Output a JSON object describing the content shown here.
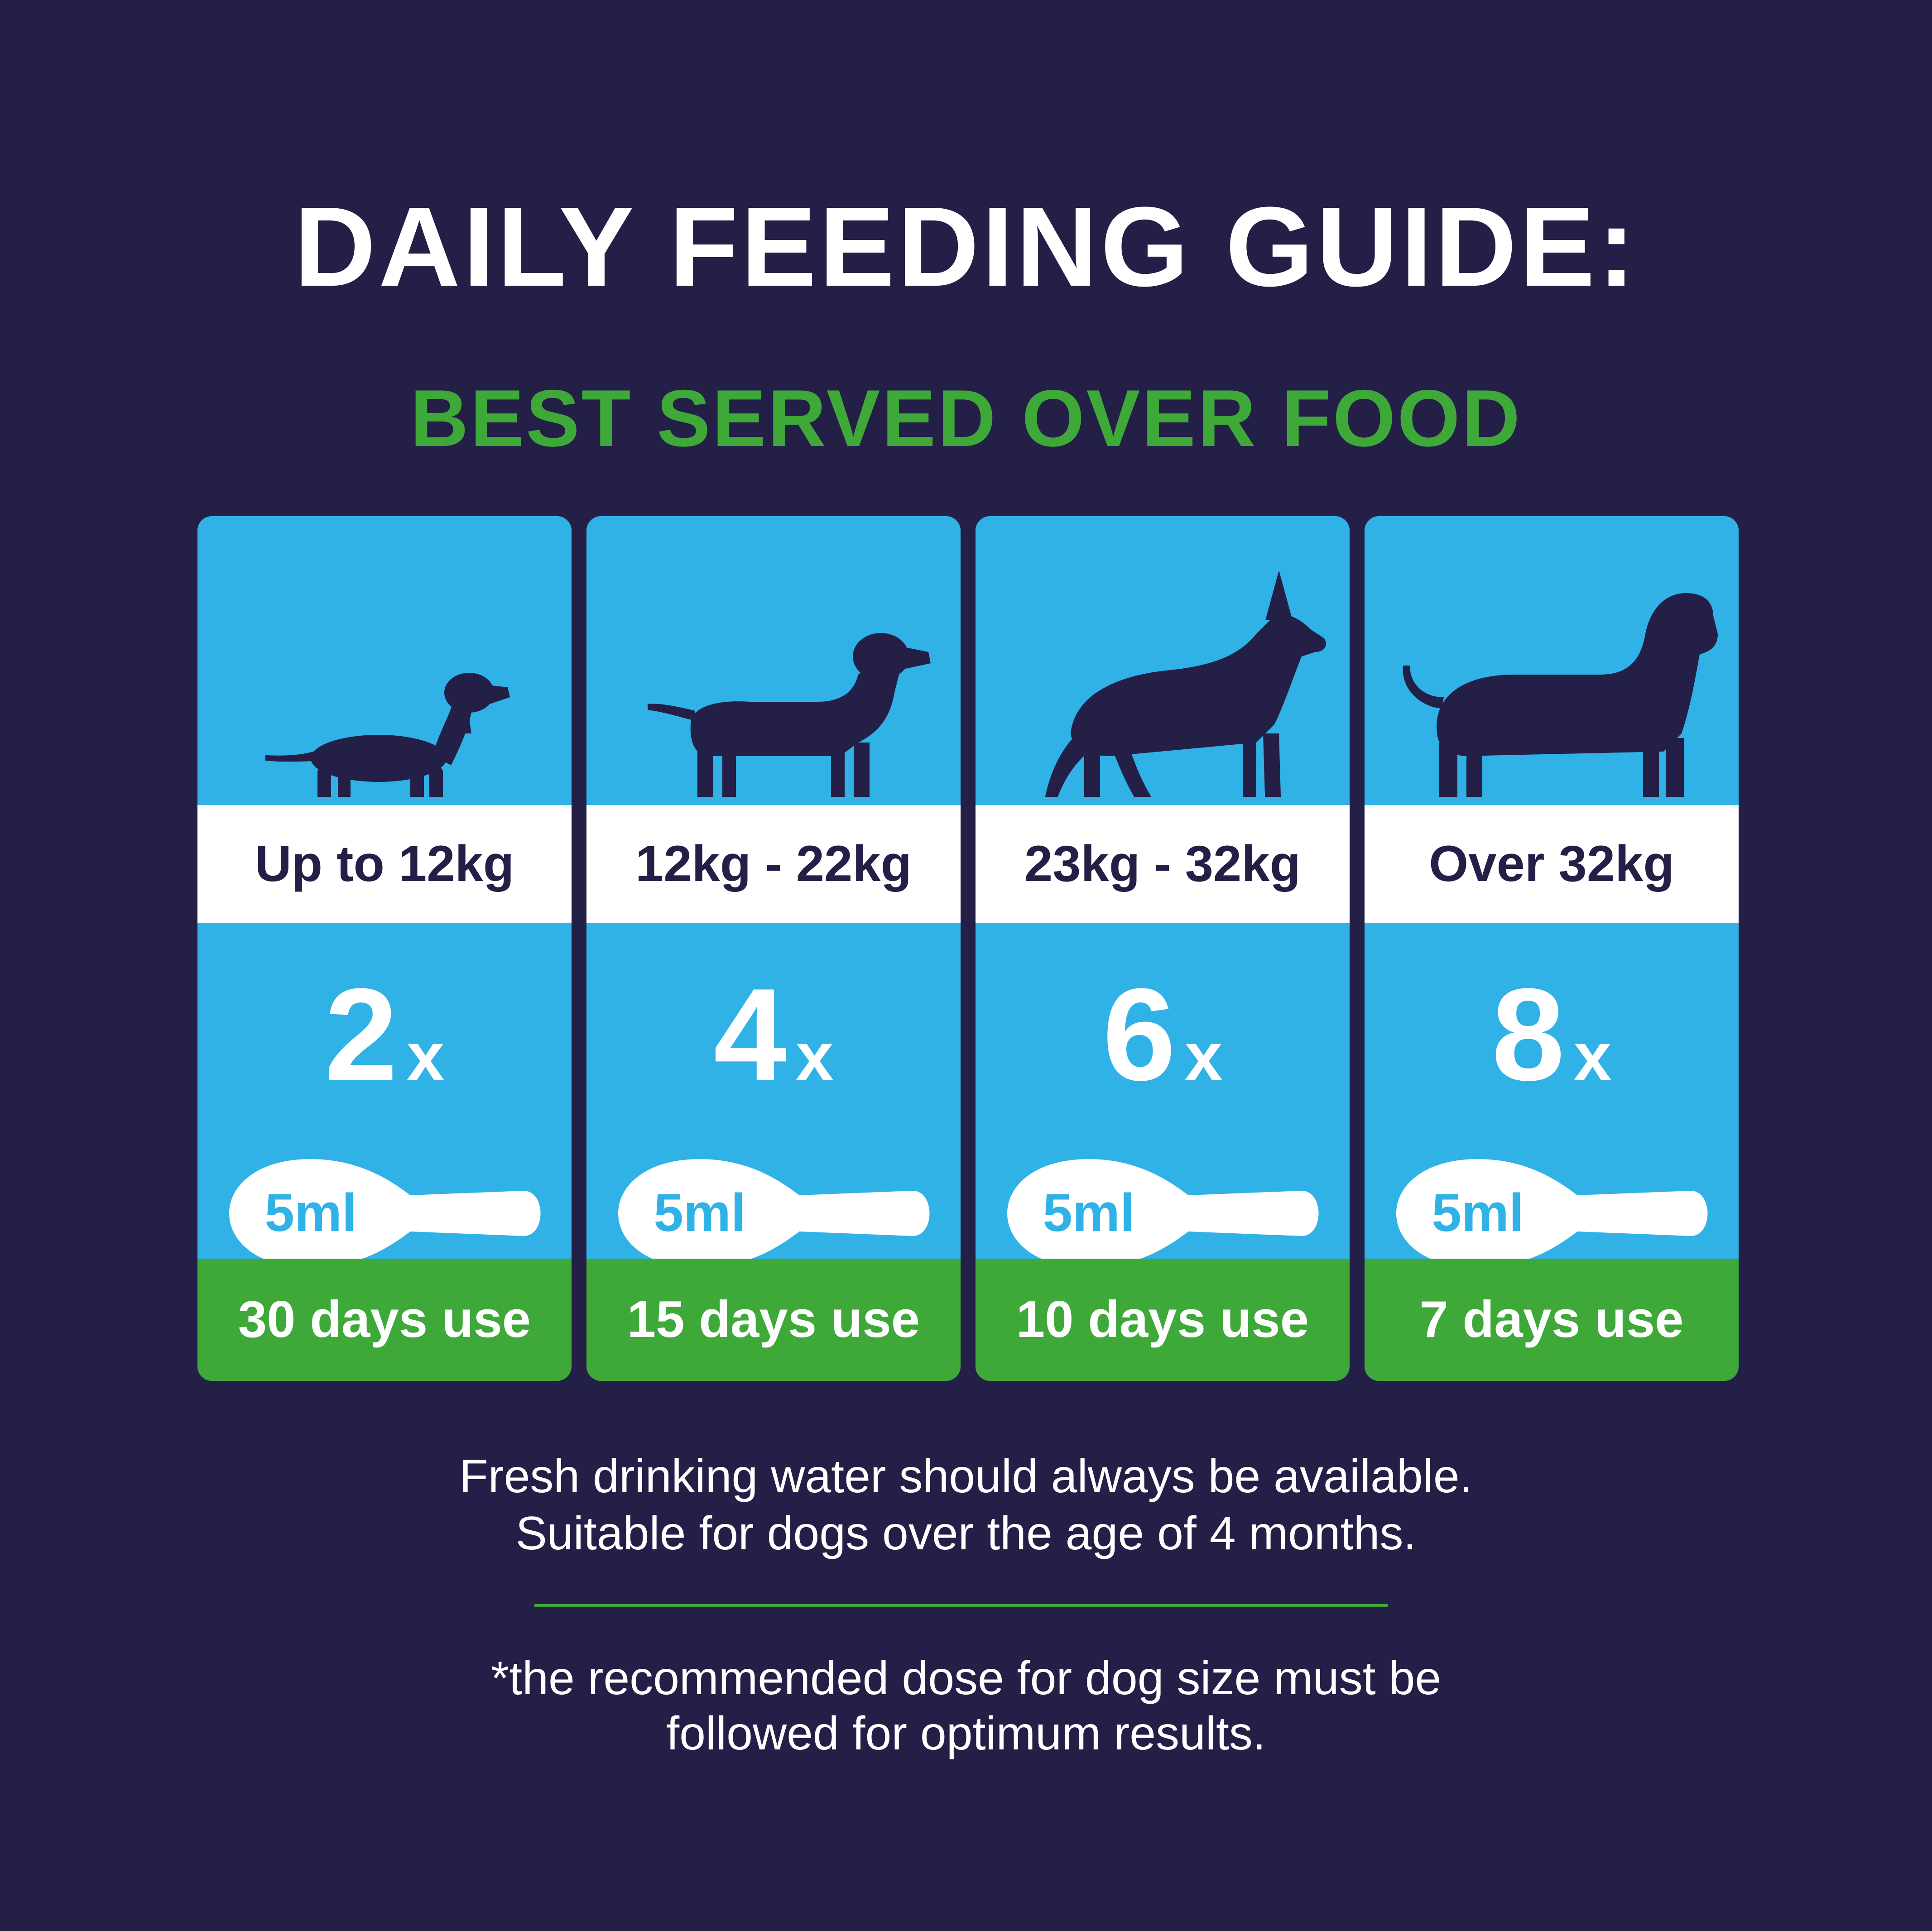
{
  "title": "DAILY FEEDING GUIDE:",
  "subtitle": "BEST SERVED OVER FOOD",
  "colors": {
    "background": "#231f47",
    "card_blue": "#30b2e7",
    "accent_green": "#3ea838",
    "white": "#ffffff"
  },
  "cards": [
    {
      "dog_icon": "dachshund-silhouette-icon",
      "weight": "Up to 12kg",
      "count": "2",
      "times": "x",
      "spoon": "5ml",
      "duration": "30 days use"
    },
    {
      "dog_icon": "labrador-silhouette-icon",
      "weight": "12kg - 22kg",
      "count": "4",
      "times": "x",
      "spoon": "5ml",
      "duration": "15 days use"
    },
    {
      "dog_icon": "german-shepherd-silhouette-icon",
      "weight": "23kg - 32kg",
      "count": "6",
      "times": "x",
      "spoon": "5ml",
      "duration": "10 days use"
    },
    {
      "dog_icon": "mastiff-silhouette-icon",
      "weight": "Over 32kg",
      "count": "8",
      "times": "x",
      "spoon": "5ml",
      "duration": "7 days use"
    }
  ],
  "notes": {
    "line1": "Fresh drinking water should always be available.",
    "line2": "Suitable for dogs over the age of 4 months.",
    "footnote1": "*the recommended dose for dog size must be",
    "footnote2": "followed for optimum results."
  }
}
